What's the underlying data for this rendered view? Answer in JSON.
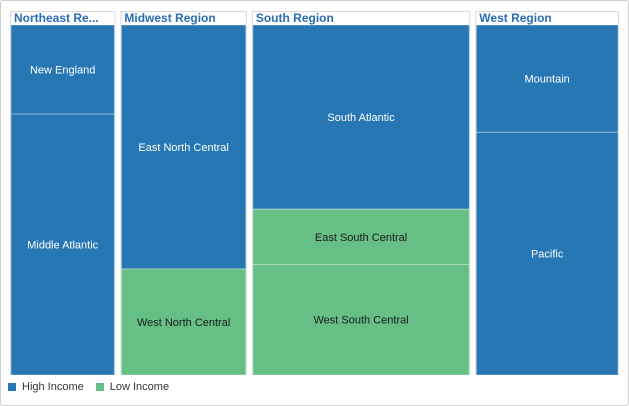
{
  "chart_data": {
    "type": "treemap",
    "regions": [
      {
        "name": "Northeast Region",
        "display_name": "Northeast Re...",
        "divisions": [
          {
            "name": "New England",
            "value": 14,
            "income": "High Income"
          },
          {
            "name": "Middle Atlantic",
            "value": 41,
            "income": "High Income"
          }
        ]
      },
      {
        "name": "Midwest Region",
        "display_name": "Midwest Region",
        "divisions": [
          {
            "name": "East North Central",
            "value": 46,
            "income": "High Income"
          },
          {
            "name": "West North Central",
            "value": 20,
            "income": "Low Income"
          }
        ]
      },
      {
        "name": "South Region",
        "display_name": "South Region",
        "divisions": [
          {
            "name": "South Atlantic",
            "value": 60,
            "income": "High Income"
          },
          {
            "name": "East South Central",
            "value": 18,
            "income": "Low Income"
          },
          {
            "name": "West South Central",
            "value": 36,
            "income": "Low Income"
          }
        ]
      },
      {
        "name": "West Region",
        "display_name": "West Region",
        "divisions": [
          {
            "name": "Mountain",
            "value": 23,
            "income": "High Income"
          },
          {
            "name": "Pacific",
            "value": 52,
            "income": "High Income"
          }
        ]
      }
    ],
    "legend": [
      {
        "label": "High Income",
        "color": "#2777b4"
      },
      {
        "label": "Low Income",
        "color": "#66bf84"
      }
    ],
    "colors": {
      "High Income": "#2777b4",
      "Low Income": "#66bf84"
    },
    "legend_position": "bottom-left"
  }
}
